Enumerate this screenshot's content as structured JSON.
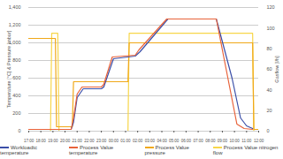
{
  "chart_data": {
    "type": "line",
    "ylabel": "Temperature [°C] & Pressure [mbar]",
    "y2label": "Gasflow [l/h]",
    "xlim": [
      0,
      19
    ],
    "xticks": [
      {
        "value": 0,
        "label": "17:00"
      },
      {
        "value": 1,
        "label": "18:00"
      },
      {
        "value": 2,
        "label": "19:00"
      },
      {
        "value": 3,
        "label": "20:00"
      },
      {
        "value": 4,
        "label": "21:00"
      },
      {
        "value": 5,
        "label": "22:00"
      },
      {
        "value": 6,
        "label": "23:00"
      },
      {
        "value": 7,
        "label": "00:00"
      },
      {
        "value": 8,
        "label": "01:00"
      },
      {
        "value": 9,
        "label": "02:00"
      },
      {
        "value": 10,
        "label": "03:00"
      },
      {
        "value": 11,
        "label": "04:00"
      },
      {
        "value": 12,
        "label": "05:00"
      },
      {
        "value": 13,
        "label": "06:00"
      },
      {
        "value": 14,
        "label": "07:00"
      },
      {
        "value": 15,
        "label": "08:00"
      },
      {
        "value": 16,
        "label": "09:00"
      },
      {
        "value": 17,
        "label": "10:00"
      },
      {
        "value": 18,
        "label": "11:00"
      },
      {
        "value": 19,
        "label": "12:00"
      }
    ],
    "ylim": [
      0,
      1400
    ],
    "yticks": [
      0,
      200,
      400,
      600,
      800,
      {
        "value": 1000,
        "label": "1,000"
      },
      {
        "value": 1200,
        "label": "1,200"
      },
      {
        "value": 1400,
        "label": "1,400"
      }
    ],
    "y2lim": [
      0,
      120
    ],
    "y2ticks": [
      0,
      20,
      40,
      60,
      80,
      100,
      120
    ],
    "grid": true,
    "legend": "bottom",
    "series": [
      {
        "name": "Process Value nitrogen flow",
        "color": "#f7d64a",
        "axis": "y2",
        "x": [
          0,
          1.8,
          1.9,
          2.4,
          2.5,
          8.2,
          8.3,
          18.5,
          18.6,
          19
        ],
        "values": [
          0,
          0,
          95,
          95,
          0,
          0,
          95,
          95,
          0,
          0
        ]
      },
      {
        "name": "Process Value pressure",
        "color": "#f0a818",
        "x": [
          0,
          2.2,
          2.3,
          3.6,
          3.7,
          8.2,
          8.3,
          18.5,
          18.6,
          19
        ],
        "values": [
          1050,
          1050,
          50,
          50,
          560,
          560,
          1000,
          1000,
          20,
          20
        ]
      },
      {
        "name": "Workloadtc temperature",
        "color": "#3b4fa8",
        "x": [
          0,
          3.5,
          3.7,
          4.0,
          4.5,
          6.0,
          6.2,
          7.0,
          8.8,
          9.2,
          11.5,
          15.5,
          16.8,
          17.5,
          18.0,
          18.5
        ],
        "values": [
          20,
          20,
          100,
          380,
          480,
          480,
          500,
          820,
          850,
          900,
          1270,
          1270,
          600,
          150,
          60,
          30
        ]
      },
      {
        "name": "Process Value temperature",
        "color": "#e8623a",
        "x": [
          0,
          3.5,
          3.7,
          4.0,
          4.4,
          6.0,
          6.2,
          6.9,
          8.8,
          9.1,
          11.4,
          15.5,
          16.6,
          17.2,
          17.8,
          18.5
        ],
        "values": [
          20,
          20,
          150,
          420,
          500,
          500,
          530,
          840,
          860,
          920,
          1270,
          1270,
          500,
          80,
          30,
          20
        ]
      }
    ]
  }
}
